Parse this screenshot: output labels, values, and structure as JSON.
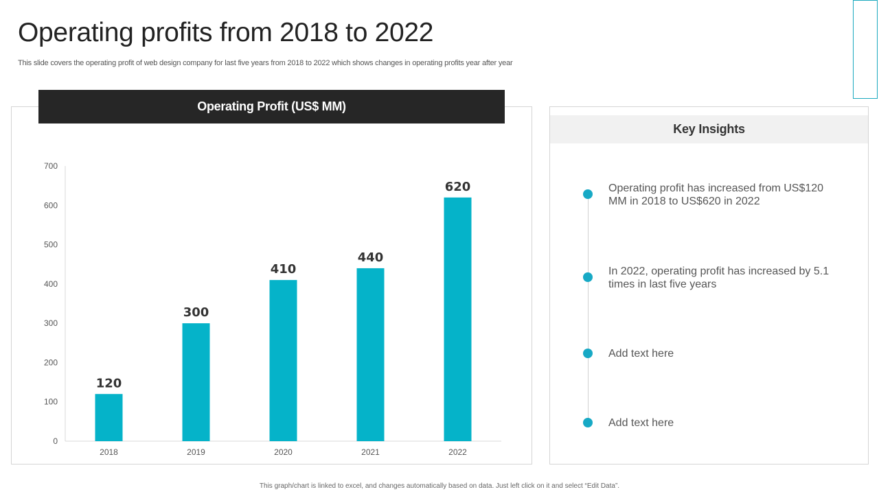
{
  "slide": {
    "title": "Operating profits from 2018 to 2022",
    "subtitle": "This slide covers the operating profit of web design company for last five years from 2018 to 2022 which shows changes in operating profits year after year",
    "footer": "This graph/chart is linked to excel, and changes automatically based on data. Just left click on it and select “Edit Data”."
  },
  "colors": {
    "bar": "#05b3c9",
    "header_dark": "#262626",
    "accent": "#17a9c5"
  },
  "chart_data": {
    "type": "bar",
    "title": "Operating Profit (US$ MM)",
    "xlabel": "",
    "ylabel": "",
    "categories": [
      "2018",
      "2019",
      "2020",
      "2021",
      "2022"
    ],
    "values": [
      120,
      300,
      410,
      440,
      620
    ],
    "ylim": [
      0,
      700
    ],
    "yticks": [
      0,
      100,
      200,
      300,
      400,
      500,
      600,
      700
    ],
    "grid": false,
    "legend": "none",
    "data_labels": true
  },
  "insights": {
    "header": "Key Insights",
    "items": [
      {
        "text": "Operating profit has increased from US$120 MM in 2018 to US$620 in 2022"
      },
      {
        "text": "In 2022, operating profit has increased by 5.1 times in last five years"
      },
      {
        "text": "Add text here"
      },
      {
        "text": "Add text here"
      }
    ]
  }
}
